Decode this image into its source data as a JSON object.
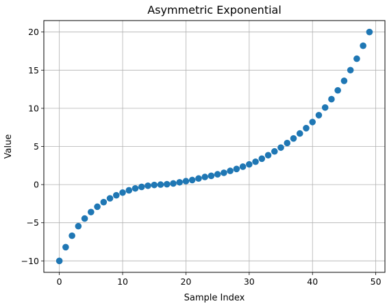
{
  "chart_data": {
    "type": "scatter",
    "title": "Asymmetric Exponential",
    "xlabel": "Sample Index",
    "ylabel": "Value",
    "xlim": [
      -2.45,
      51.45
    ],
    "ylim": [
      -11.5,
      21.5
    ],
    "x_ticks": [
      0,
      10,
      20,
      30,
      40,
      50
    ],
    "y_ticks": [
      -10,
      -5,
      0,
      5,
      10,
      15,
      20
    ],
    "x_tick_labels": [
      "0",
      "10",
      "20",
      "30",
      "40",
      "50"
    ],
    "y_tick_labels": [
      "−10",
      "−5",
      "0",
      "5",
      "10",
      "15",
      "20"
    ],
    "grid": true,
    "marker_color": "#1f77b4",
    "grid_color": "#b0b0b0",
    "x": [
      0,
      1,
      2,
      3,
      4,
      5,
      6,
      7,
      8,
      9,
      10,
      11,
      12,
      13,
      14,
      15,
      16,
      17,
      18,
      19,
      20,
      21,
      22,
      23,
      24,
      25,
      26,
      27,
      28,
      29,
      30,
      31,
      32,
      33,
      34,
      35,
      36,
      37,
      38,
      39,
      40,
      41,
      42,
      43,
      44,
      45,
      46,
      47,
      48,
      49
    ],
    "y": [
      -10.0,
      -8.2,
      -6.7,
      -5.45,
      -4.45,
      -3.6,
      -2.9,
      -2.3,
      -1.8,
      -1.4,
      -1.05,
      -0.75,
      -0.5,
      -0.3,
      -0.15,
      -0.05,
      0.0,
      0.05,
      0.15,
      0.3,
      0.45,
      0.6,
      0.8,
      1.0,
      1.15,
      1.35,
      1.55,
      1.8,
      2.05,
      2.35,
      2.65,
      3.0,
      3.4,
      3.85,
      4.35,
      4.85,
      5.45,
      6.05,
      6.7,
      7.4,
      8.2,
      9.1,
      10.1,
      11.2,
      12.35,
      13.6,
      15.0,
      16.5,
      18.2,
      20.0
    ]
  }
}
